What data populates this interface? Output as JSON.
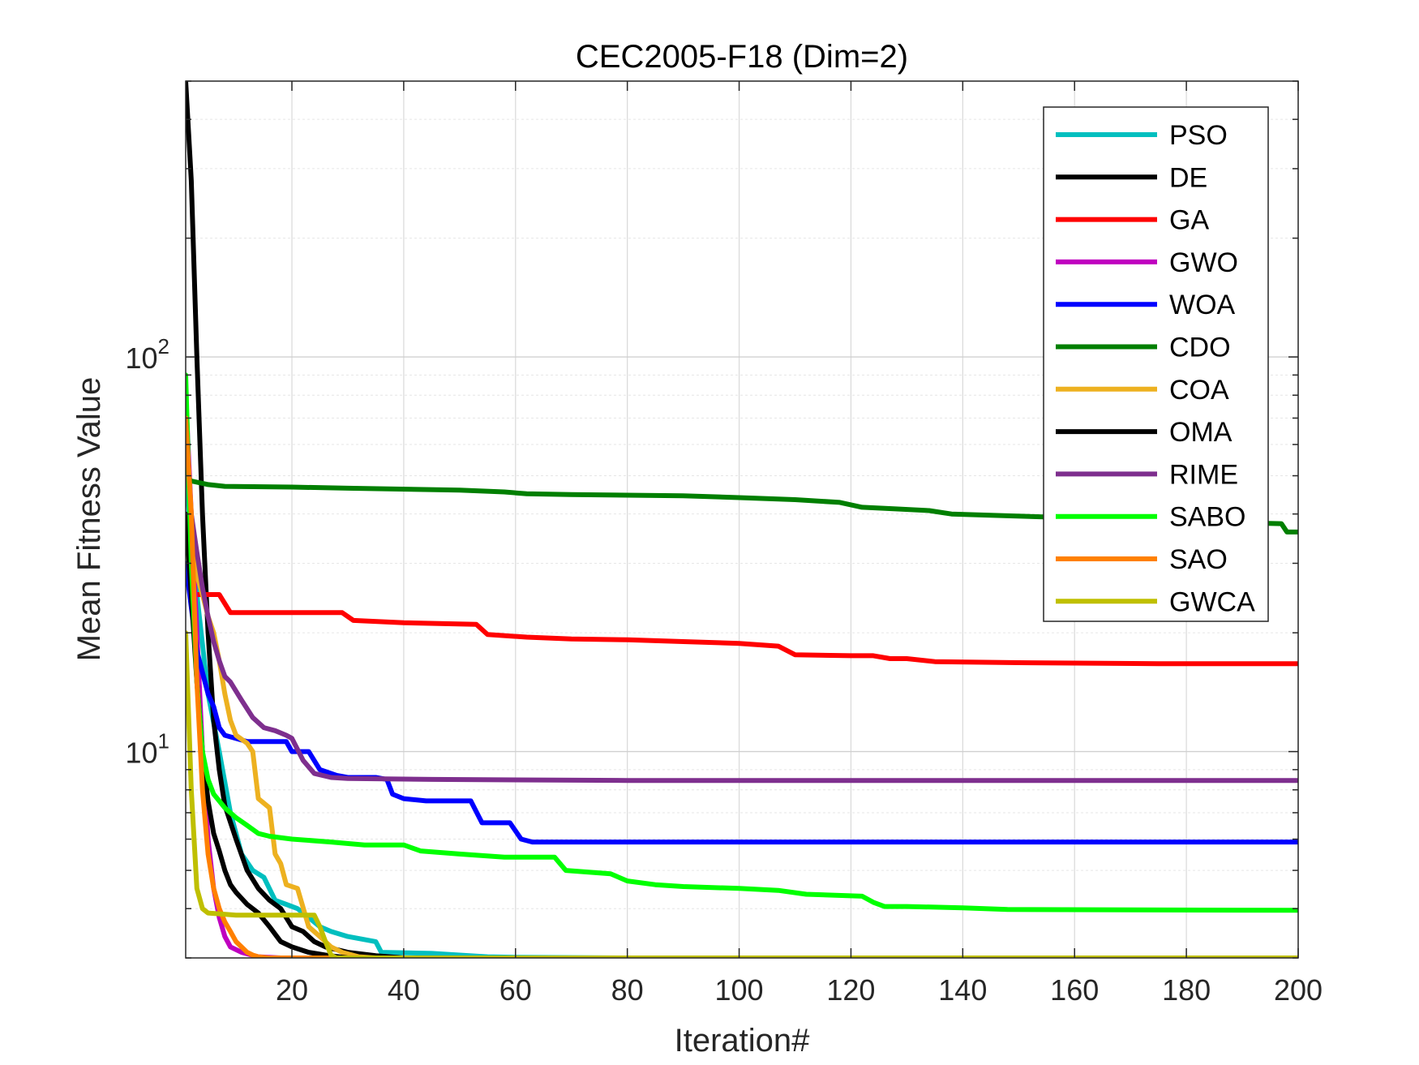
{
  "chart_data": {
    "type": "line",
    "title": "CEC2005-F18 (Dim=2)",
    "xlabel": "Iteration#",
    "ylabel": "Mean Fitness Value",
    "yscale": "log",
    "xlim": [
      1,
      200
    ],
    "ylim": [
      3,
      500
    ],
    "xticks": [
      20,
      40,
      60,
      80,
      100,
      120,
      140,
      160,
      180,
      200
    ],
    "ytick_labels": [
      {
        "value": 10,
        "base": "10",
        "exp": "1"
      },
      {
        "value": 100,
        "base": "10",
        "exp": "2"
      }
    ],
    "grid": true,
    "legend_position": "top-right",
    "series": [
      {
        "name": "PSO",
        "color": "#00BFBF",
        "points": [
          [
            1,
            50
          ],
          [
            3,
            25
          ],
          [
            5,
            14
          ],
          [
            7,
            10
          ],
          [
            9,
            7
          ],
          [
            11,
            5.5
          ],
          [
            13,
            5
          ],
          [
            15,
            4.8
          ],
          [
            17,
            4.2
          ],
          [
            19,
            4.1
          ],
          [
            21,
            4.0
          ],
          [
            23,
            3.8
          ],
          [
            25,
            3.6
          ],
          [
            27,
            3.5
          ],
          [
            30,
            3.4
          ],
          [
            35,
            3.3
          ],
          [
            36,
            3.1
          ],
          [
            45,
            3.08
          ],
          [
            50,
            3.05
          ],
          [
            55,
            3.02
          ],
          [
            60,
            3.01
          ],
          [
            80,
            3.0
          ],
          [
            200,
            3.0
          ]
        ]
      },
      {
        "name": "DE",
        "color": "#000000",
        "points": [
          [
            1,
            500
          ],
          [
            2,
            280
          ],
          [
            3,
            100
          ],
          [
            4,
            40
          ],
          [
            5,
            20
          ],
          [
            6,
            12
          ],
          [
            7,
            9
          ],
          [
            8,
            7.3
          ],
          [
            10,
            6
          ],
          [
            12,
            5
          ],
          [
            14,
            4.5
          ],
          [
            16,
            4.2
          ],
          [
            18,
            4.0
          ],
          [
            20,
            3.6
          ],
          [
            22,
            3.5
          ],
          [
            24,
            3.3
          ],
          [
            26,
            3.2
          ],
          [
            30,
            3.1
          ],
          [
            35,
            3.04
          ],
          [
            40,
            3.0
          ],
          [
            200,
            3.0
          ]
        ]
      },
      {
        "name": "GA",
        "color": "#FF0000",
        "points": [
          [
            1,
            29
          ],
          [
            2,
            25
          ],
          [
            7,
            25
          ],
          [
            9,
            22.5
          ],
          [
            12,
            22.5
          ],
          [
            29,
            22.5
          ],
          [
            31,
            21.5
          ],
          [
            40,
            21.2
          ],
          [
            53,
            21
          ],
          [
            55,
            19.8
          ],
          [
            62,
            19.5
          ],
          [
            70,
            19.3
          ],
          [
            80,
            19.2
          ],
          [
            90,
            19
          ],
          [
            100,
            18.8
          ],
          [
            107,
            18.5
          ],
          [
            110,
            17.6
          ],
          [
            120,
            17.5
          ],
          [
            124,
            17.5
          ],
          [
            127,
            17.2
          ],
          [
            130,
            17.2
          ],
          [
            135,
            16.9
          ],
          [
            150,
            16.8
          ],
          [
            175,
            16.7
          ],
          [
            200,
            16.7
          ]
        ]
      },
      {
        "name": "GWO",
        "color": "#BF00BF",
        "points": [
          [
            1,
            80
          ],
          [
            2,
            40
          ],
          [
            3,
            20
          ],
          [
            4,
            10
          ],
          [
            5,
            6
          ],
          [
            6,
            4.5
          ],
          [
            7,
            3.8
          ],
          [
            8,
            3.4
          ],
          [
            9,
            3.2
          ],
          [
            11,
            3.1
          ],
          [
            14,
            3.02
          ],
          [
            18,
            3.0
          ],
          [
            200,
            3.0
          ]
        ]
      },
      {
        "name": "WOA",
        "color": "#0000FF",
        "points": [
          [
            1,
            30
          ],
          [
            3,
            18
          ],
          [
            5,
            14
          ],
          [
            6,
            13
          ],
          [
            7,
            11.5
          ],
          [
            8,
            11
          ],
          [
            12,
            10.6
          ],
          [
            19,
            10.6
          ],
          [
            20,
            10
          ],
          [
            23,
            10
          ],
          [
            25,
            9
          ],
          [
            28,
            8.7
          ],
          [
            30,
            8.6
          ],
          [
            35,
            8.6
          ],
          [
            37,
            8.5
          ],
          [
            38,
            7.8
          ],
          [
            40,
            7.6
          ],
          [
            44,
            7.5
          ],
          [
            52,
            7.5
          ],
          [
            54,
            6.6
          ],
          [
            59,
            6.6
          ],
          [
            61,
            6
          ],
          [
            63,
            5.9
          ],
          [
            70,
            5.9
          ],
          [
            200,
            5.9
          ]
        ]
      },
      {
        "name": "CDO",
        "color": "#007F00",
        "points": [
          [
            1,
            50
          ],
          [
            2,
            48.5
          ],
          [
            5,
            47.5
          ],
          [
            8,
            47
          ],
          [
            20,
            46.8
          ],
          [
            30,
            46.5
          ],
          [
            50,
            46
          ],
          [
            58,
            45.5
          ],
          [
            62,
            45
          ],
          [
            70,
            44.8
          ],
          [
            90,
            44.5
          ],
          [
            100,
            44
          ],
          [
            110,
            43.5
          ],
          [
            118,
            42.8
          ],
          [
            122,
            41.6
          ],
          [
            128,
            41.2
          ],
          [
            134,
            40.8
          ],
          [
            138,
            40
          ],
          [
            145,
            39.7
          ],
          [
            155,
            39.3
          ],
          [
            163,
            38.8
          ],
          [
            170,
            38.5
          ],
          [
            180,
            38.3
          ],
          [
            190,
            38
          ],
          [
            197,
            37.8
          ],
          [
            198,
            36
          ],
          [
            200,
            36
          ]
        ]
      },
      {
        "name": "COA",
        "color": "#EDB120",
        "points": [
          [
            1,
            70
          ],
          [
            2,
            40
          ],
          [
            3,
            28
          ],
          [
            4,
            25
          ],
          [
            5,
            22
          ],
          [
            6,
            20
          ],
          [
            7,
            17
          ],
          [
            8,
            14
          ],
          [
            9,
            12
          ],
          [
            10,
            11
          ],
          [
            12,
            10.5
          ],
          [
            13,
            10
          ],
          [
            14,
            7.6
          ],
          [
            16,
            7.2
          ],
          [
            17,
            5.5
          ],
          [
            18,
            5.2
          ],
          [
            19,
            4.6
          ],
          [
            21,
            4.5
          ],
          [
            23,
            3.6
          ],
          [
            25,
            3.4
          ],
          [
            27,
            3.2
          ],
          [
            29,
            3.1
          ],
          [
            32,
            3.02
          ],
          [
            35,
            3.0
          ],
          [
            200,
            3.0
          ]
        ]
      },
      {
        "name": "OMA",
        "color": "#000000",
        "points": [
          [
            1,
            40
          ],
          [
            2,
            25
          ],
          [
            3,
            15
          ],
          [
            4,
            10
          ],
          [
            5,
            7.5
          ],
          [
            6,
            6.2
          ],
          [
            7,
            5.6
          ],
          [
            8,
            5
          ],
          [
            9,
            4.6
          ],
          [
            10,
            4.4
          ],
          [
            12,
            4.1
          ],
          [
            14,
            3.9
          ],
          [
            16,
            3.6
          ],
          [
            18,
            3.3
          ],
          [
            20,
            3.2
          ],
          [
            23,
            3.1
          ],
          [
            26,
            3.05
          ],
          [
            30,
            3.0
          ],
          [
            200,
            3.0
          ]
        ]
      },
      {
        "name": "RIME",
        "color": "#7E2F8E",
        "points": [
          [
            1,
            60
          ],
          [
            2,
            40
          ],
          [
            3,
            32
          ],
          [
            4,
            26
          ],
          [
            5,
            22
          ],
          [
            6,
            19
          ],
          [
            7,
            17
          ],
          [
            8,
            15.5
          ],
          [
            9,
            15
          ],
          [
            11,
            13.5
          ],
          [
            13,
            12.2
          ],
          [
            15,
            11.5
          ],
          [
            17,
            11.3
          ],
          [
            19,
            11
          ],
          [
            20,
            10.8
          ],
          [
            22,
            9.5
          ],
          [
            24,
            8.8
          ],
          [
            27,
            8.6
          ],
          [
            30,
            8.55
          ],
          [
            45,
            8.5
          ],
          [
            80,
            8.45
          ],
          [
            200,
            8.45
          ]
        ]
      },
      {
        "name": "SABO",
        "color": "#00FF00",
        "points": [
          [
            1,
            90
          ],
          [
            2,
            30
          ],
          [
            3,
            15
          ],
          [
            4,
            10
          ],
          [
            5,
            8.5
          ],
          [
            6,
            7.8
          ],
          [
            7,
            7.5
          ],
          [
            8,
            7.2
          ],
          [
            10,
            6.8
          ],
          [
            12,
            6.5
          ],
          [
            14,
            6.2
          ],
          [
            16,
            6.1
          ],
          [
            20,
            6.0
          ],
          [
            27,
            5.9
          ],
          [
            33,
            5.8
          ],
          [
            40,
            5.8
          ],
          [
            43,
            5.6
          ],
          [
            50,
            5.5
          ],
          [
            58,
            5.4
          ],
          [
            67,
            5.4
          ],
          [
            69,
            5.0
          ],
          [
            77,
            4.9
          ],
          [
            80,
            4.7
          ],
          [
            85,
            4.6
          ],
          [
            90,
            4.55
          ],
          [
            100,
            4.5
          ],
          [
            107,
            4.45
          ],
          [
            112,
            4.35
          ],
          [
            122,
            4.3
          ],
          [
            124,
            4.15
          ],
          [
            126,
            4.05
          ],
          [
            130,
            4.05
          ],
          [
            140,
            4.02
          ],
          [
            148,
            3.98
          ],
          [
            200,
            3.96
          ]
        ]
      },
      {
        "name": "SAO",
        "color": "#FF8000",
        "points": [
          [
            1,
            70
          ],
          [
            2,
            40
          ],
          [
            3,
            15
          ],
          [
            4,
            8
          ],
          [
            5,
            5.5
          ],
          [
            6,
            4.5
          ],
          [
            7,
            4
          ],
          [
            8,
            3.7
          ],
          [
            9,
            3.5
          ],
          [
            10,
            3.3
          ],
          [
            11,
            3.2
          ],
          [
            12,
            3.1
          ],
          [
            13,
            3.05
          ],
          [
            14,
            3.02
          ],
          [
            16,
            3.0
          ],
          [
            200,
            3.0
          ]
        ]
      },
      {
        "name": "GWCA",
        "color": "#BFBF00",
        "points": [
          [
            1,
            20
          ],
          [
            2,
            8
          ],
          [
            3,
            4.5
          ],
          [
            4,
            4.0
          ],
          [
            5,
            3.9
          ],
          [
            10,
            3.85
          ],
          [
            17,
            3.85
          ],
          [
            20,
            3.85
          ],
          [
            24,
            3.85
          ],
          [
            25,
            3.6
          ],
          [
            26,
            3.3
          ],
          [
            27,
            3.05
          ],
          [
            28,
            3.0
          ],
          [
            200,
            3.0
          ]
        ]
      }
    ]
  }
}
